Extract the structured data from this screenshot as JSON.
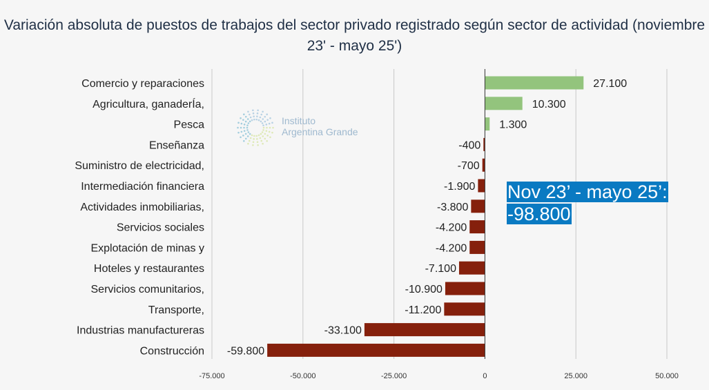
{
  "chart_data": {
    "type": "bar",
    "orientation": "horizontal",
    "title": "Variación absoluta de puestos de trabajos del sector privado registrado según sector de actividad (noviembre 23' - mayo 25')",
    "categories": [
      "Comercio y reparaciones",
      "Agricultura, ganaderÍa,",
      "Pesca",
      "Enseñanza",
      "Suministro de electricidad,",
      "Intermediación financiera",
      "Actividades inmobiliarias,",
      "Servicios sociales",
      "Explotación de minas y",
      "Hoteles y restaurantes",
      "Servicios comunitarios,",
      "Transporte,",
      "Industrias manufactureras",
      "Construcción"
    ],
    "values": [
      27100,
      10300,
      1300,
      -400,
      -700,
      -1900,
      -3800,
      -4200,
      -4200,
      -7100,
      -10900,
      -11200,
      -33100,
      -59800
    ],
    "data_labels": [
      "27.100",
      "10.300",
      "1.300",
      "-400",
      "-700",
      "-1.900",
      "-3.800",
      "-4.200",
      "-4.200",
      "-7.100",
      "-10.900",
      "-11.200",
      "-33.100",
      "-59.800"
    ],
    "xlim": [
      -75000,
      50000
    ],
    "x_ticks": [
      -75000,
      -50000,
      -25000,
      0,
      25000,
      50000
    ],
    "x_tick_labels": [
      "-75.000",
      "-50.000",
      "-25.000",
      "0",
      "25.000",
      "50.000"
    ],
    "grid": "vertical",
    "colors": {
      "positive": "#93c47d",
      "negative": "#85200c",
      "annotation_bg": "#0a7ac2"
    },
    "annotation": [
      "Nov 23’ - mayo 25’:",
      "-98.800"
    ]
  },
  "watermark": "Instituto Argentina Grande"
}
